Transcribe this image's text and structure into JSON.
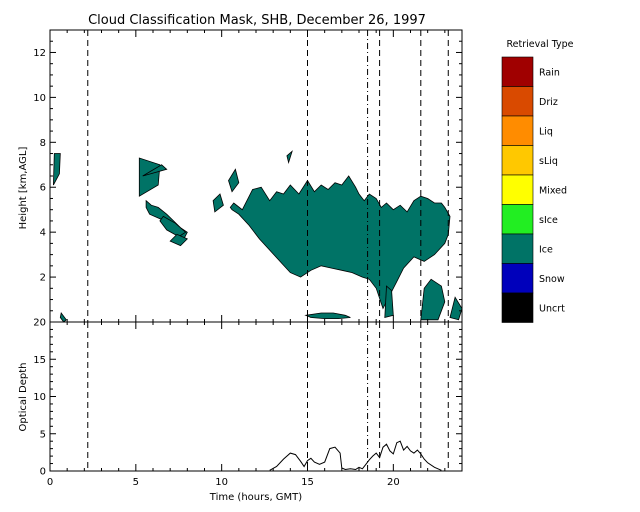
{
  "chart_data": [
    {
      "type": "heatmap",
      "title": "Cloud Classification Mask, SHB, December 26, 1997",
      "ylabel": "Height [km,AGL]",
      "xlim": [
        0,
        24
      ],
      "ylim": [
        0,
        13
      ],
      "y_ticks": [
        2,
        4,
        6,
        8,
        10,
        12
      ],
      "y_tick_labels": [
        "2",
        "4",
        "6",
        "8",
        "10",
        "12"
      ],
      "x_ticks_major": [
        0,
        5,
        10,
        15,
        20
      ],
      "dashed_lines_x": [
        2.2,
        15.0,
        19.2,
        21.6,
        23.2
      ],
      "dashdot_lines_x": [
        18.5
      ],
      "legend": {
        "title": "Retrieval Type",
        "placement": "right",
        "entries": [
          {
            "name": "Rain",
            "color": "#a00000"
          },
          {
            "name": "Driz",
            "color": "#d94a00"
          },
          {
            "name": "Liq",
            "color": "#ff8c00"
          },
          {
            "name": "sLiq",
            "color": "#ffc800"
          },
          {
            "name": "Mixed",
            "color": "#ffff00"
          },
          {
            "name": "sIce",
            "color": "#22ee22"
          },
          {
            "name": "Ice",
            "color": "#007366"
          },
          {
            "name": "Snow",
            "color": "#0000bb"
          },
          {
            "name": "Uncrt",
            "color": "#000000"
          }
        ]
      },
      "ice_regions": [
        {
          "x": [
            5.2,
            6.3,
            6.4,
            5.2
          ],
          "y": [
            5.6,
            6.1,
            7.0,
            7.3
          ]
        },
        {
          "x": [
            5.4,
            6.8,
            6.5
          ],
          "y": [
            6.5,
            6.8,
            7.0
          ]
        },
        {
          "x": [
            5.6,
            5.9,
            6.3,
            6.8,
            7.2,
            7.6,
            8.0,
            7.8,
            7.4,
            7.0,
            6.4,
            5.8,
            5.6
          ],
          "y": [
            5.4,
            5.2,
            5.1,
            4.8,
            4.5,
            4.2,
            4.0,
            3.7,
            3.9,
            4.4,
            4.6,
            4.8,
            5.1
          ]
        },
        {
          "x": [
            6.6,
            7.3,
            7.9,
            7.5,
            6.8,
            6.4
          ],
          "y": [
            4.7,
            4.4,
            4.0,
            3.8,
            4.1,
            4.5
          ]
        },
        {
          "x": [
            7.0,
            7.6,
            8.0,
            7.4
          ],
          "y": [
            3.6,
            3.4,
            3.7,
            3.9
          ]
        },
        {
          "x": [
            9.5,
            9.9,
            10.1,
            9.6
          ],
          "y": [
            5.4,
            5.7,
            5.2,
            4.9
          ]
        },
        {
          "x": [
            10.6,
            11.0,
            10.8,
            10.4
          ],
          "y": [
            5.8,
            6.2,
            6.8,
            6.3
          ]
        },
        {
          "x": [
            10.7,
            11.2,
            11.8,
            12.3,
            12.8,
            13.2,
            13.6,
            14.0,
            14.5,
            15.0,
            15.4,
            15.8,
            16.2,
            16.6,
            17.0,
            17.4,
            17.8,
            18.0,
            18.3,
            18.6,
            19.0,
            19.3,
            19.6,
            20.0,
            20.4,
            20.8,
            21.2,
            21.6,
            22.0,
            22.4,
            22.8,
            23.0,
            23.3,
            23.2,
            23.0,
            22.4,
            21.8,
            21.2,
            20.6,
            20.2,
            19.8,
            19.4,
            19.0,
            18.6,
            18.2,
            17.6,
            17.0,
            16.4,
            15.8,
            15.2,
            14.6,
            14.0,
            13.4,
            12.8,
            12.2,
            11.6,
            11.0,
            10.8,
            10.6,
            10.5
          ],
          "y": [
            5.3,
            5.0,
            5.9,
            6.0,
            5.4,
            5.8,
            5.7,
            6.1,
            5.7,
            6.3,
            5.8,
            6.1,
            5.9,
            6.2,
            6.1,
            6.5,
            6.0,
            5.7,
            5.4,
            5.7,
            5.5,
            5.1,
            5.3,
            5.0,
            5.2,
            4.9,
            5.4,
            5.6,
            5.5,
            5.3,
            5.3,
            5.1,
            4.7,
            3.9,
            3.5,
            3.0,
            2.7,
            2.9,
            2.4,
            1.8,
            1.2,
            0.6,
            1.5,
            1.9,
            2.0,
            2.2,
            2.3,
            2.4,
            2.5,
            2.3,
            2.0,
            2.2,
            2.7,
            3.2,
            3.7,
            4.3,
            4.8,
            4.9,
            5.0,
            5.1
          ]
        },
        {
          "x": [
            14.9,
            15.8,
            16.5,
            17.2,
            17.5,
            16.8,
            16.0,
            15.2
          ],
          "y": [
            0.3,
            0.4,
            0.4,
            0.3,
            0.2,
            0.15,
            0.15,
            0.2
          ]
        },
        {
          "x": [
            19.5,
            20.0,
            19.9,
            19.6
          ],
          "y": [
            0.2,
            0.3,
            1.4,
            1.6
          ]
        },
        {
          "x": [
            21.6,
            22.6,
            23.0,
            22.8,
            22.2,
            21.8
          ],
          "y": [
            0.1,
            0.1,
            0.9,
            1.6,
            1.9,
            1.5
          ]
        },
        {
          "x": [
            23.3,
            23.8,
            24.0,
            23.6
          ],
          "y": [
            0.2,
            0.1,
            0.6,
            1.1
          ]
        },
        {
          "x": [
            0.2,
            0.55,
            0.6,
            0.25
          ],
          "y": [
            6.1,
            6.6,
            7.5,
            7.5
          ]
        },
        {
          "x": [
            0.65,
            0.95,
            0.8,
            0.6
          ],
          "y": [
            0.4,
            0.1,
            0.0,
            0.2
          ]
        },
        {
          "x": [
            13.8,
            14.1,
            13.9
          ],
          "y": [
            7.4,
            7.6,
            7.1
          ]
        }
      ]
    },
    {
      "type": "line",
      "ylabel": "Optical Depth",
      "xlabel": "Time (hours, GMT)",
      "xlim": [
        0,
        24
      ],
      "ylim": [
        0,
        20
      ],
      "y_ticks": [
        0,
        5,
        10,
        15,
        20
      ],
      "y_tick_labels": [
        "0",
        "5",
        "10",
        "15",
        "20"
      ],
      "x_ticks": [
        0,
        5,
        10,
        15,
        20
      ],
      "x_tick_labels": [
        "0",
        "5",
        "10",
        "15",
        "20"
      ],
      "dashed_lines_x": [
        2.2,
        15.0,
        19.2,
        21.6,
        23.2
      ],
      "dashdot_lines_x": [
        18.5
      ],
      "series": [
        {
          "x": [
            12.8,
            13.2,
            13.6,
            14.0,
            14.3,
            14.6,
            14.8,
            15.0,
            15.2,
            15.4,
            15.7,
            16.0,
            16.3,
            16.6,
            16.9,
            17.0,
            17.2,
            17.5,
            17.8,
            18.0,
            18.2,
            18.4,
            18.6,
            18.8,
            19.0,
            19.2,
            19.4,
            19.6,
            19.8,
            20.0,
            20.2,
            20.4,
            20.6,
            20.8,
            21.0,
            21.2,
            21.4,
            21.6,
            21.8,
            22.0,
            22.4,
            22.8
          ],
          "y": [
            0.1,
            0.6,
            1.6,
            2.4,
            2.2,
            1.3,
            0.6,
            1.4,
            1.7,
            1.2,
            0.9,
            1.2,
            3.0,
            3.2,
            2.4,
            0.4,
            0.2,
            0.3,
            0.2,
            0.5,
            0.3,
            0.9,
            1.5,
            2.0,
            2.4,
            1.8,
            3.2,
            3.6,
            2.7,
            2.3,
            3.8,
            4.0,
            2.8,
            3.3,
            2.7,
            2.4,
            2.8,
            2.3,
            1.6,
            1.1,
            0.5,
            0.1
          ]
        }
      ]
    }
  ]
}
